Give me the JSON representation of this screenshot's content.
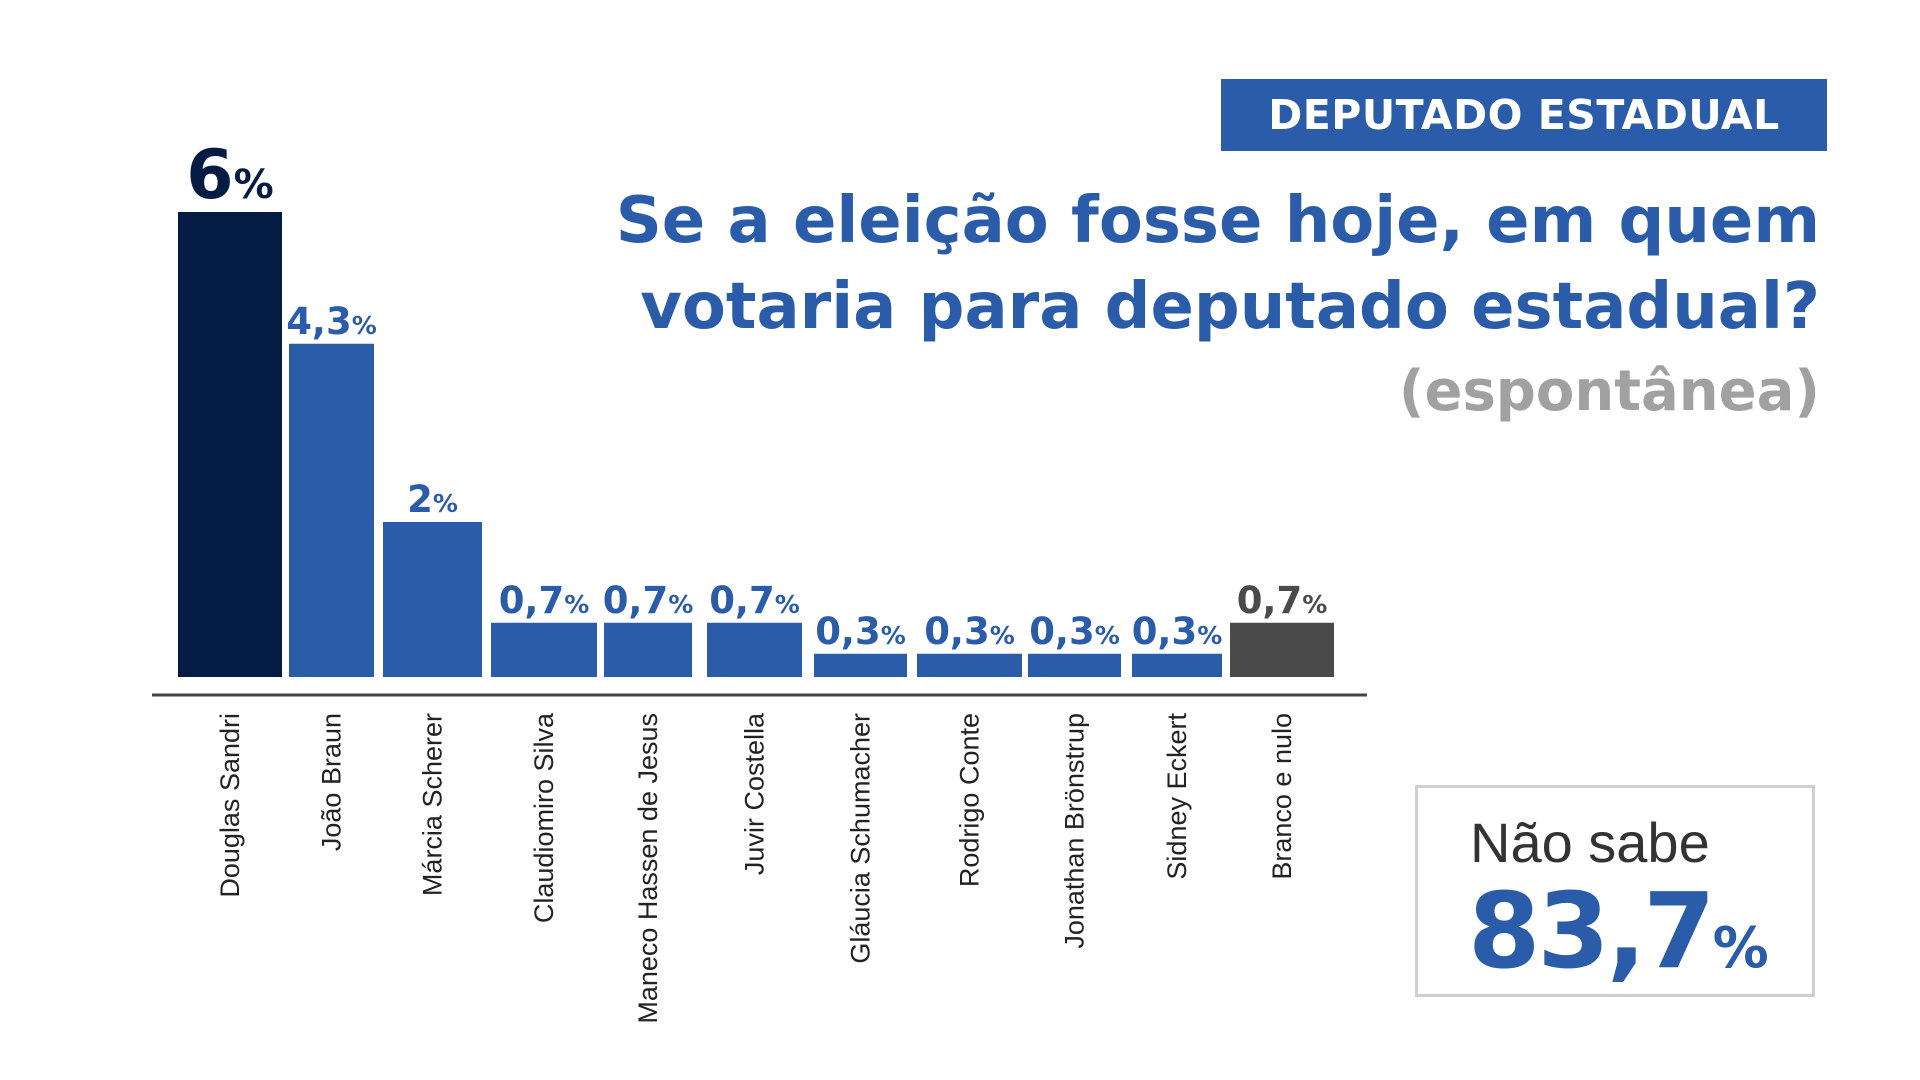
{
  "badge": "DEPUTADO ESTADUAL",
  "title_line1": "Se a eleição fosse hoje, em quem",
  "title_line2": "votaria para deputado estadual?",
  "subtitle": "(espontânea)",
  "colors": {
    "highlight": "#041c44",
    "bar": "#2b5caa",
    "other": "#4a4a4a",
    "subtitle": "#a1a1a1"
  },
  "chart_data": {
    "type": "bar",
    "categories": [
      "Douglas Sandri",
      "João Braun",
      "Márcia Scherer",
      "Claudiomiro Silva",
      "Maneco Hassen de Jesus",
      "Juvir Costella",
      "Gláucia Schumacher",
      "Rodrigo Conte",
      "Jonathan Brönstrup",
      "Sidney Eckert",
      "Branco e nulo"
    ],
    "values": [
      6,
      4.3,
      2,
      0.7,
      0.7,
      0.7,
      0.3,
      0.3,
      0.3,
      0.3,
      0.7
    ],
    "value_labels": [
      "6",
      "4,3",
      "2",
      "0,7",
      "0,7",
      "0,7",
      "0,3",
      "0,3",
      "0,3",
      "0,3",
      "0,7"
    ],
    "unit": "%",
    "bar_colors": [
      "#041c44",
      "#2b5caa",
      "#2b5caa",
      "#2b5caa",
      "#2b5caa",
      "#2b5caa",
      "#2b5caa",
      "#2b5caa",
      "#2b5caa",
      "#2b5caa",
      "#4a4a4a"
    ],
    "ylim": [
      0,
      6
    ]
  },
  "nao_sabe": {
    "label": "Não sabe",
    "value": "83,7",
    "unit": "%"
  }
}
